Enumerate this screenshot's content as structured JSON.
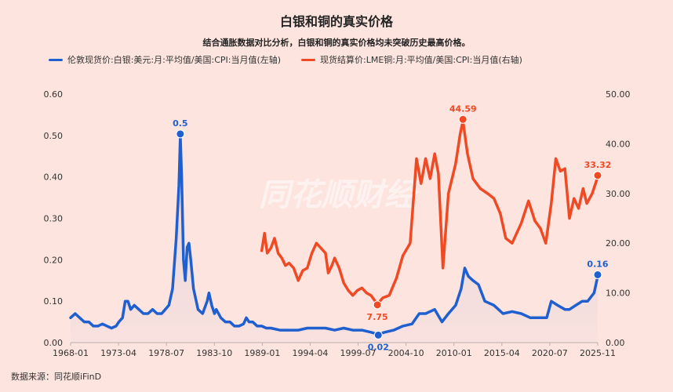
{
  "chart_data": {
    "type": "line",
    "title": "白银和铜的真实价格",
    "subtitle": "结合通胀数据对比分析，白银和铜的真实价格均未突破历史最高价格。",
    "x_ticks": [
      "1968-01",
      "1973-04",
      "1978-07",
      "1983-10",
      "1989-01",
      "1994-04",
      "1999-07",
      "2004-10",
      "2010-01",
      "2015-04",
      "2020-07",
      "2025-11"
    ],
    "y_left": {
      "ticks": [
        "0.00",
        "0.10",
        "0.20",
        "0.30",
        "0.40",
        "0.50",
        "0.60"
      ],
      "range": [
        0,
        0.6
      ]
    },
    "y_right": {
      "ticks": [
        "0.00",
        "10.00",
        "20.00",
        "30.00",
        "40.00",
        "50.00"
      ],
      "range": [
        0,
        50
      ]
    },
    "series": [
      {
        "name": "伦敦现货价:白银:美元:月:平均值/美国:CPI:当月值(左轴)",
        "axis": "left",
        "color": "#1f5fd0",
        "points": [
          [
            1968.0,
            0.06
          ],
          [
            1968.5,
            0.07
          ],
          [
            1969.0,
            0.06
          ],
          [
            1969.5,
            0.05
          ],
          [
            1970.0,
            0.05
          ],
          [
            1970.5,
            0.04
          ],
          [
            1971.0,
            0.04
          ],
          [
            1971.5,
            0.045
          ],
          [
            1972.0,
            0.04
          ],
          [
            1972.5,
            0.035
          ],
          [
            1973.0,
            0.04
          ],
          [
            1973.3,
            0.05
          ],
          [
            1973.7,
            0.06
          ],
          [
            1974.0,
            0.1
          ],
          [
            1974.3,
            0.1
          ],
          [
            1974.6,
            0.08
          ],
          [
            1975.0,
            0.09
          ],
          [
            1975.5,
            0.08
          ],
          [
            1976.0,
            0.07
          ],
          [
            1976.5,
            0.07
          ],
          [
            1977.0,
            0.08
          ],
          [
            1977.5,
            0.07
          ],
          [
            1978.0,
            0.07
          ],
          [
            1978.4,
            0.08
          ],
          [
            1978.8,
            0.09
          ],
          [
            1979.2,
            0.13
          ],
          [
            1979.6,
            0.25
          ],
          [
            1979.9,
            0.38
          ],
          [
            1980.05,
            0.5
          ],
          [
            1980.2,
            0.4
          ],
          [
            1980.4,
            0.2
          ],
          [
            1980.6,
            0.15
          ],
          [
            1980.8,
            0.23
          ],
          [
            1981.0,
            0.24
          ],
          [
            1981.2,
            0.2
          ],
          [
            1981.5,
            0.13
          ],
          [
            1982.0,
            0.08
          ],
          [
            1982.5,
            0.07
          ],
          [
            1983.0,
            0.1
          ],
          [
            1983.2,
            0.12
          ],
          [
            1983.5,
            0.09
          ],
          [
            1983.8,
            0.07
          ],
          [
            1984.0,
            0.08
          ],
          [
            1984.5,
            0.06
          ],
          [
            1985.0,
            0.05
          ],
          [
            1985.5,
            0.05
          ],
          [
            1986.0,
            0.04
          ],
          [
            1986.5,
            0.04
          ],
          [
            1987.0,
            0.045
          ],
          [
            1987.3,
            0.06
          ],
          [
            1987.6,
            0.05
          ],
          [
            1988.0,
            0.05
          ],
          [
            1988.5,
            0.04
          ],
          [
            1989.0,
            0.04
          ],
          [
            1989.5,
            0.035
          ],
          [
            1990.0,
            0.035
          ],
          [
            1991.0,
            0.03
          ],
          [
            1992.0,
            0.03
          ],
          [
            1993.0,
            0.03
          ],
          [
            1994.0,
            0.035
          ],
          [
            1995.0,
            0.035
          ],
          [
            1996.0,
            0.035
          ],
          [
            1997.0,
            0.03
          ],
          [
            1998.0,
            0.035
          ],
          [
            1999.0,
            0.03
          ],
          [
            2000.0,
            0.03
          ],
          [
            2001.0,
            0.025
          ],
          [
            2001.8,
            0.02
          ],
          [
            2002.5,
            0.025
          ],
          [
            2003.5,
            0.03
          ],
          [
            2004.5,
            0.04
          ],
          [
            2005.5,
            0.045
          ],
          [
            2006.3,
            0.07
          ],
          [
            2007.0,
            0.07
          ],
          [
            2008.0,
            0.08
          ],
          [
            2008.8,
            0.05
          ],
          [
            2009.5,
            0.07
          ],
          [
            2010.3,
            0.09
          ],
          [
            2010.9,
            0.13
          ],
          [
            2011.3,
            0.18
          ],
          [
            2011.7,
            0.16
          ],
          [
            2012.2,
            0.15
          ],
          [
            2012.8,
            0.14
          ],
          [
            2013.5,
            0.1
          ],
          [
            2014.5,
            0.09
          ],
          [
            2015.5,
            0.07
          ],
          [
            2016.5,
            0.075
          ],
          [
            2017.5,
            0.07
          ],
          [
            2018.5,
            0.06
          ],
          [
            2019.5,
            0.06
          ],
          [
            2020.3,
            0.06
          ],
          [
            2020.8,
            0.1
          ],
          [
            2021.5,
            0.09
          ],
          [
            2022.3,
            0.08
          ],
          [
            2022.8,
            0.08
          ],
          [
            2023.5,
            0.09
          ],
          [
            2024.2,
            0.1
          ],
          [
            2024.8,
            0.1
          ],
          [
            2025.5,
            0.12
          ],
          [
            2025.9,
            0.16
          ]
        ],
        "labels": [
          {
            "x": 1980.05,
            "y": 0.5,
            "text": "0.5"
          },
          {
            "x": 2001.8,
            "y": 0.02,
            "text": "0.02"
          },
          {
            "x": 2025.9,
            "y": 0.16,
            "text": "0.16"
          }
        ]
      },
      {
        "name": "现货结算价:LME铜:月:平均值/美国:CPI:当月值(右轴)",
        "axis": "right",
        "color": "#f04a24",
        "points": [
          [
            1989.0,
            18.5
          ],
          [
            1989.3,
            22.0
          ],
          [
            1989.6,
            18.0
          ],
          [
            1990.0,
            19.0
          ],
          [
            1990.4,
            21.0
          ],
          [
            1990.8,
            18.0
          ],
          [
            1991.2,
            17.0
          ],
          [
            1991.6,
            15.5
          ],
          [
            1992.0,
            16.0
          ],
          [
            1992.5,
            15.0
          ],
          [
            1993.0,
            12.5
          ],
          [
            1993.5,
            14.5
          ],
          [
            1994.0,
            15.0
          ],
          [
            1994.5,
            18.0
          ],
          [
            1995.0,
            20.0
          ],
          [
            1995.5,
            19.0
          ],
          [
            1996.0,
            18.0
          ],
          [
            1996.3,
            14.0
          ],
          [
            1996.7,
            15.5
          ],
          [
            1997.0,
            17.0
          ],
          [
            1997.5,
            15.0
          ],
          [
            1998.0,
            12.0
          ],
          [
            1998.5,
            10.5
          ],
          [
            1999.0,
            9.5
          ],
          [
            1999.5,
            10.5
          ],
          [
            2000.0,
            11.0
          ],
          [
            2000.5,
            10.0
          ],
          [
            2001.0,
            9.5
          ],
          [
            2001.7,
            7.75
          ],
          [
            2002.3,
            9.0
          ],
          [
            2003.0,
            9.5
          ],
          [
            2003.8,
            13.0
          ],
          [
            2004.5,
            17.5
          ],
          [
            2005.3,
            20.0
          ],
          [
            2006.0,
            37.0
          ],
          [
            2006.5,
            32.0
          ],
          [
            2007.0,
            37.0
          ],
          [
            2007.5,
            33.0
          ],
          [
            2008.0,
            38.0
          ],
          [
            2008.4,
            34.0
          ],
          [
            2008.9,
            15.0
          ],
          [
            2009.5,
            30.0
          ],
          [
            2010.3,
            36.0
          ],
          [
            2010.8,
            42.0
          ],
          [
            2011.1,
            44.59
          ],
          [
            2011.6,
            38.0
          ],
          [
            2012.2,
            33.0
          ],
          [
            2013.0,
            31.0
          ],
          [
            2013.8,
            30.0
          ],
          [
            2014.5,
            29.0
          ],
          [
            2015.2,
            26.0
          ],
          [
            2015.8,
            21.0
          ],
          [
            2016.5,
            20.0
          ],
          [
            2017.5,
            24.0
          ],
          [
            2018.3,
            28.5
          ],
          [
            2019.0,
            24.5
          ],
          [
            2019.6,
            23.0
          ],
          [
            2020.2,
            20.0
          ],
          [
            2020.8,
            28.0
          ],
          [
            2021.3,
            37.0
          ],
          [
            2021.8,
            34.5
          ],
          [
            2022.3,
            35.0
          ],
          [
            2022.8,
            25.0
          ],
          [
            2023.3,
            29.0
          ],
          [
            2023.8,
            27.0
          ],
          [
            2024.3,
            31.0
          ],
          [
            2024.7,
            28.0
          ],
          [
            2025.3,
            30.0
          ],
          [
            2025.9,
            33.32
          ]
        ],
        "labels": [
          {
            "x": 2001.7,
            "y": 7.75,
            "text": "7.75"
          },
          {
            "x": 2011.1,
            "y": 44.59,
            "text": "44.59"
          },
          {
            "x": 2025.9,
            "y": 33.32,
            "text": "33.32"
          }
        ]
      }
    ],
    "x_range": [
      1968.0,
      2025.9
    ],
    "watermark": "同花顺财经",
    "source": "数据来源：同花顺iFinD"
  }
}
